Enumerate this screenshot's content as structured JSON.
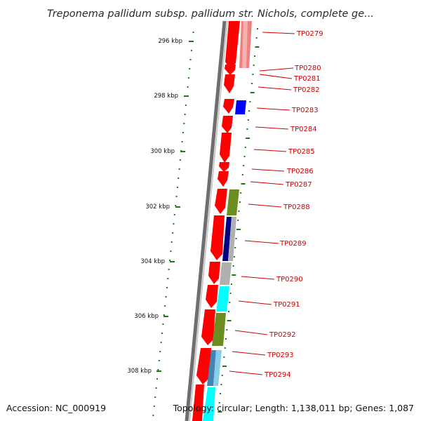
{
  "title": "Treponema pallidum subsp. pallidum str. Nichols, complete ge...",
  "footer": {
    "accession": "Accession: NC_000919",
    "topology": "Topology: circular; Length: 1,138,011 bp; Genes: 1,087"
  },
  "kbp_labels": [
    "296 kbp",
    "298 kbp",
    "300 kbp",
    "302 kbp",
    "304 kbp",
    "306 kbp",
    "308 kbp"
  ],
  "gene_labels": [
    "TP0279",
    "TP0280",
    "TP0281",
    "TP0282",
    "TP0283",
    "TP0284",
    "TP0285",
    "TP0286",
    "TP0287",
    "TP0288",
    "TP0289",
    "TP0290",
    "TP0291",
    "TP0292",
    "TP0293",
    "TP0294"
  ],
  "colors": {
    "gene_label": "#cc0000",
    "gene_strand": "#ff0000",
    "backbone": "#7a7a7a",
    "tick": "#1a7a1a",
    "olive": "#6b8e23",
    "navy": "#000080",
    "gray": "#b0b0b0",
    "cyan": "#00ffff",
    "blue": "#0000ff",
    "steelblue": "#4682b4",
    "salmon": "#f08080"
  }
}
